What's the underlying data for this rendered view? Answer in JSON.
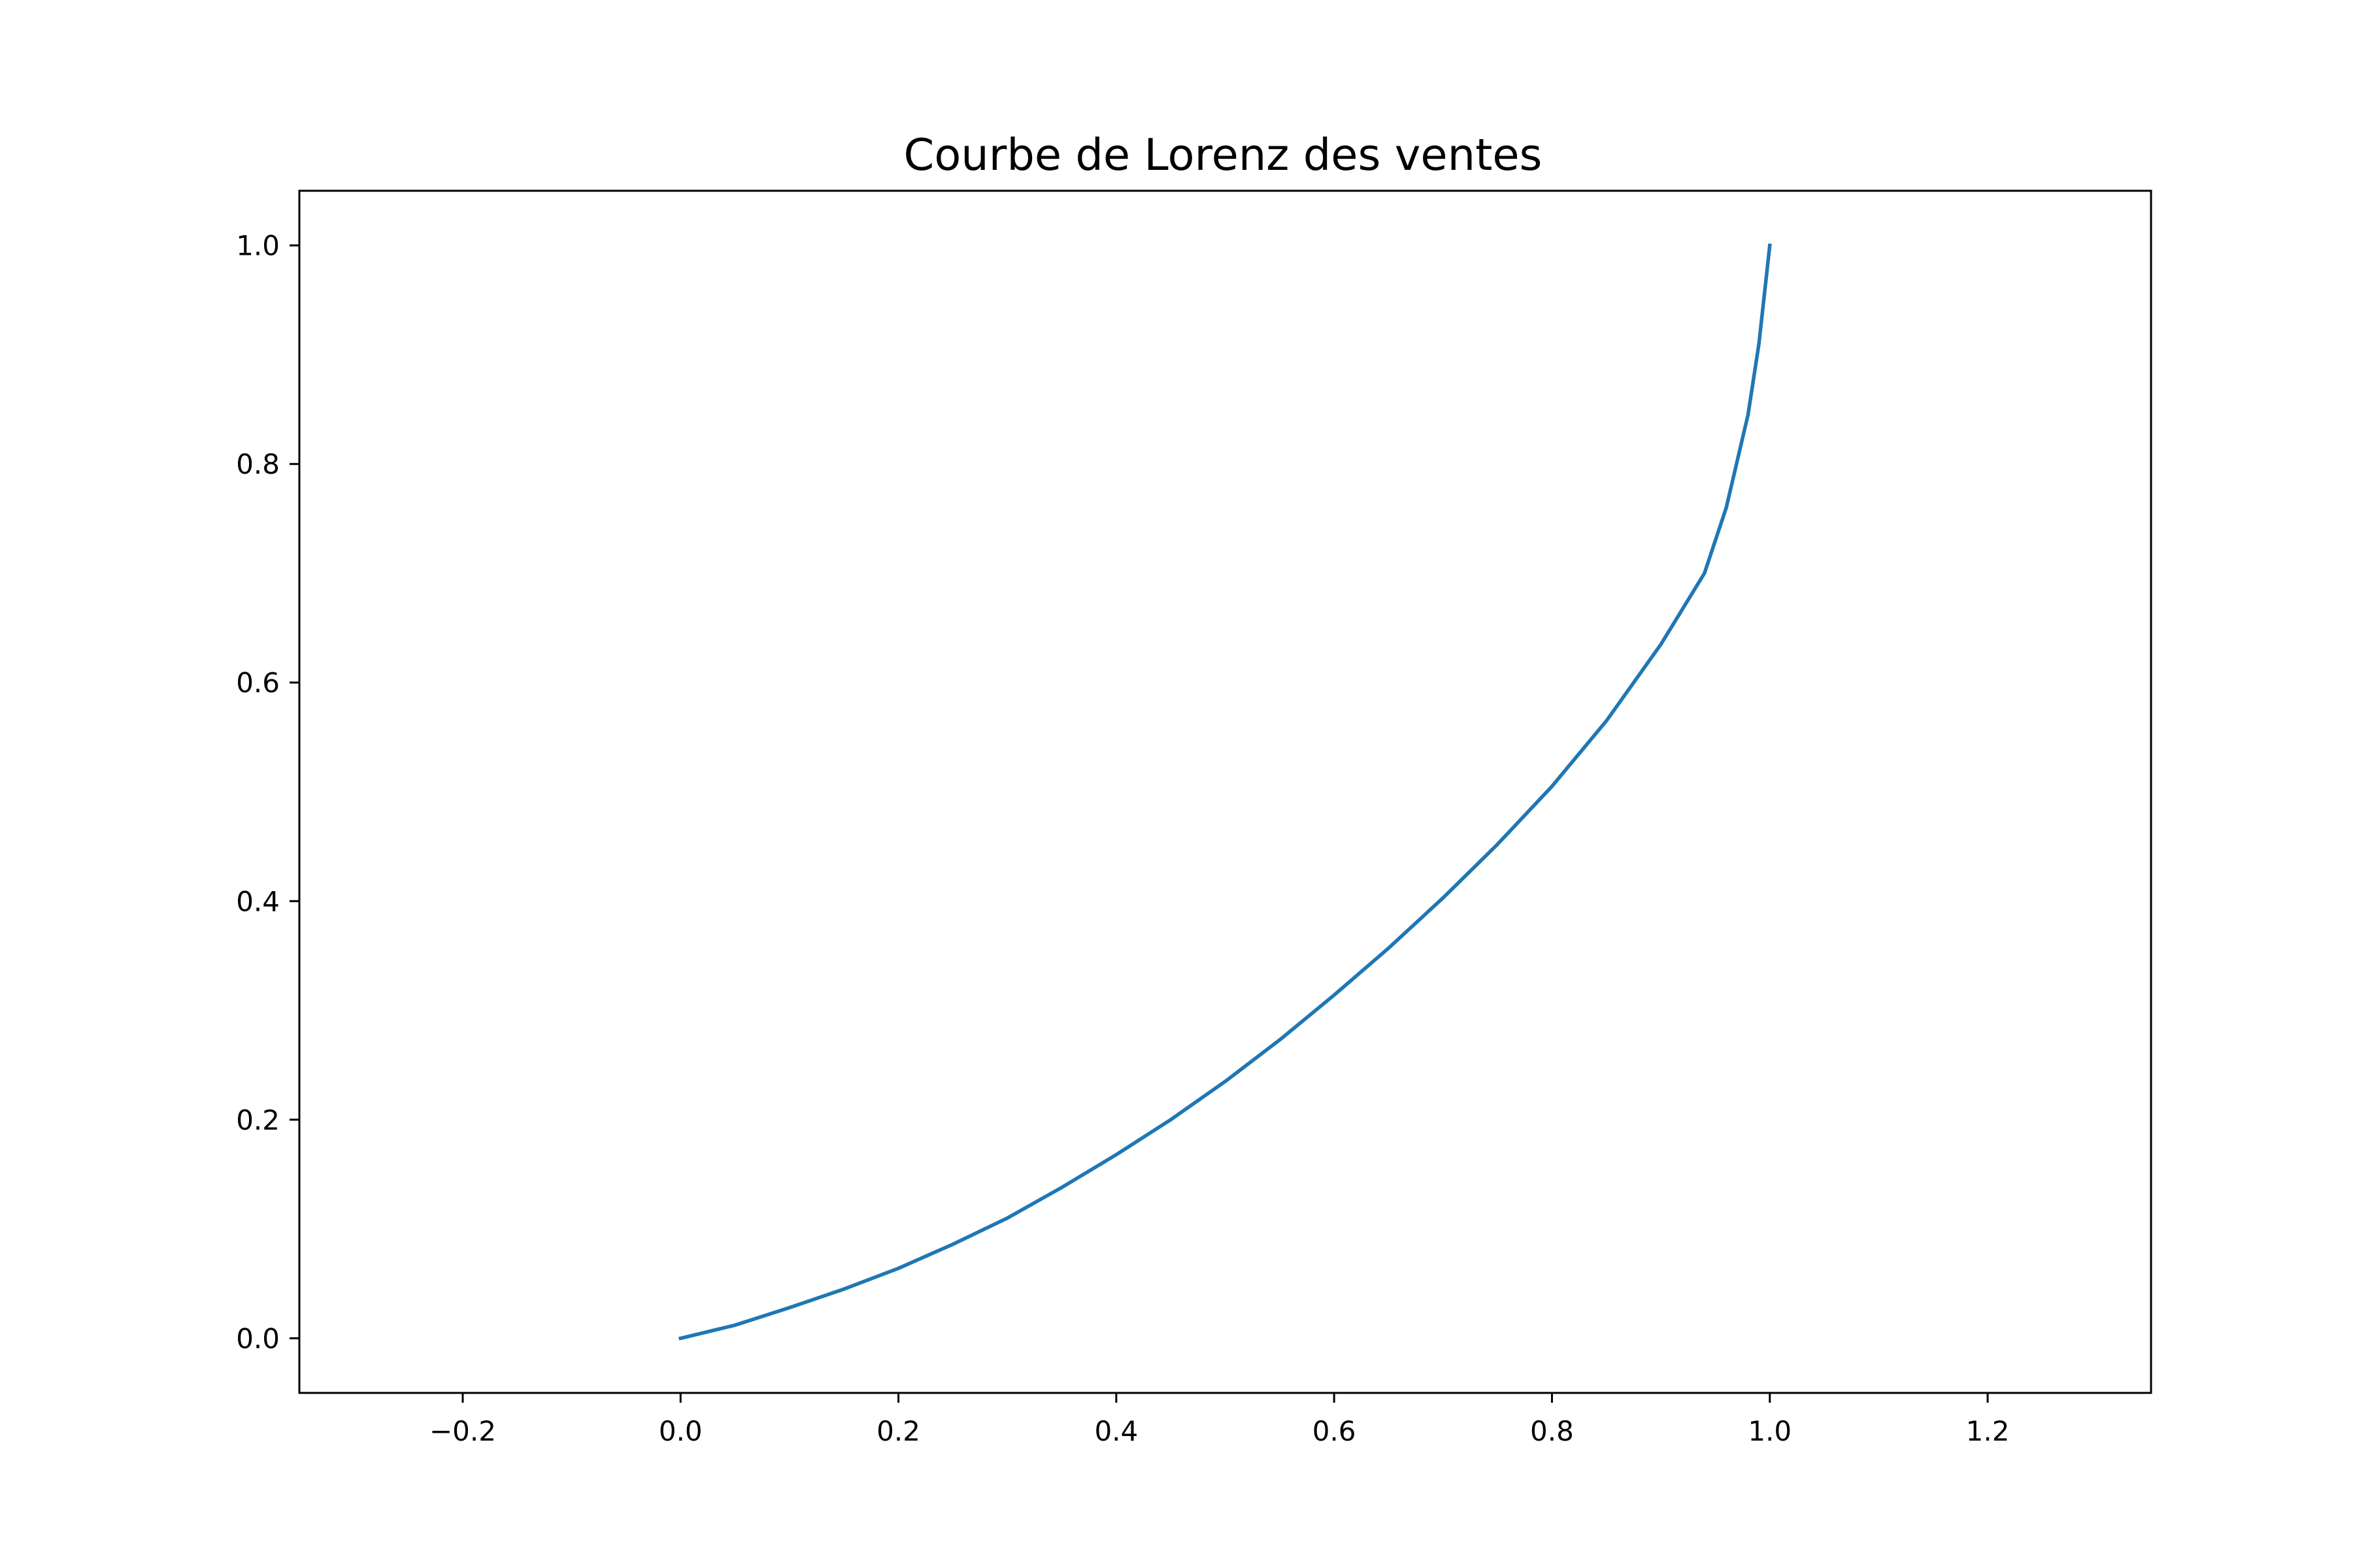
{
  "chart_data": {
    "type": "line",
    "title": "Courbe de Lorenz des ventes",
    "xlabel": "",
    "ylabel": "",
    "xlim": [
      -0.35,
      1.35
    ],
    "ylim": [
      -0.05,
      1.05
    ],
    "grid": false,
    "x_ticks": [
      -0.2,
      0.0,
      0.2,
      0.4,
      0.6,
      0.8,
      1.0,
      1.2
    ],
    "x_tick_labels": [
      "−0.2",
      "0.0",
      "0.2",
      "0.4",
      "0.6",
      "0.8",
      "1.0",
      "1.2"
    ],
    "y_ticks": [
      0.0,
      0.2,
      0.4,
      0.6,
      0.8,
      1.0
    ],
    "y_tick_labels": [
      "0.0",
      "0.2",
      "0.4",
      "0.6",
      "0.8",
      "1.0"
    ],
    "series": [
      {
        "color": "#1f77b4",
        "x": [
          0.0,
          0.05,
          0.1,
          0.15,
          0.2,
          0.25,
          0.3,
          0.35,
          0.4,
          0.45,
          0.5,
          0.55,
          0.6,
          0.65,
          0.7,
          0.75,
          0.8,
          0.85,
          0.9,
          0.94,
          0.96,
          0.98,
          0.99,
          1.0
        ],
        "y": [
          0.0,
          0.012,
          0.028,
          0.045,
          0.064,
          0.086,
          0.11,
          0.138,
          0.168,
          0.2,
          0.235,
          0.273,
          0.314,
          0.357,
          0.403,
          0.452,
          0.505,
          0.565,
          0.635,
          0.7,
          0.76,
          0.845,
          0.91,
          1.0
        ]
      }
    ]
  }
}
